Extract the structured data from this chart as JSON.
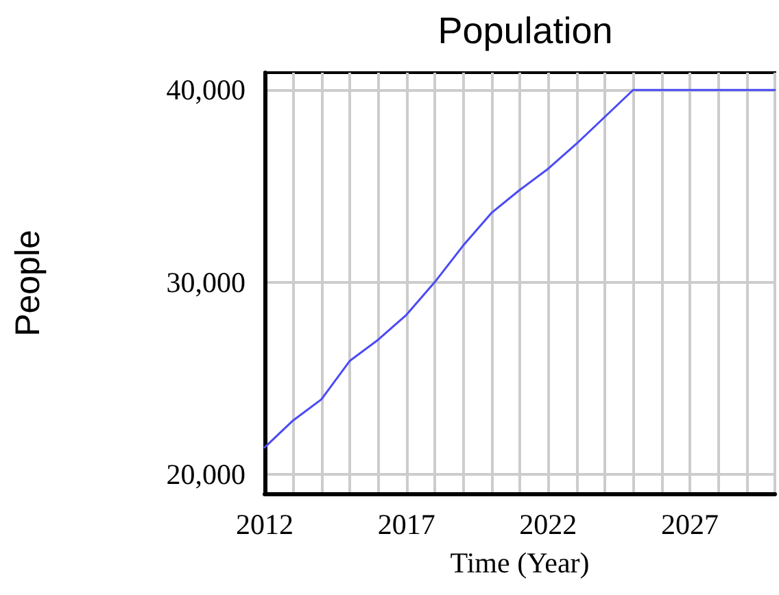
{
  "chart_data": {
    "type": "line",
    "title": "Population",
    "xlabel": "Time (Year)",
    "ylabel": "People",
    "x": [
      2012,
      2013,
      2014,
      2015,
      2016,
      2017,
      2018,
      2019,
      2020,
      2021,
      2022,
      2023,
      2024,
      2025,
      2026,
      2027,
      2028,
      2029,
      2030
    ],
    "series": [
      {
        "color": "#4a4af5",
        "values": [
          21400,
          22800,
          23900,
          25900,
          27000,
          28300,
          30000,
          31900,
          33600,
          34800,
          35900,
          37200,
          38600,
          40000,
          40000,
          40000,
          40000,
          40000,
          40000
        ]
      }
    ],
    "xlim": [
      2012,
      2030
    ],
    "ylim": [
      19000,
      40900
    ],
    "xticks": [
      2012,
      {
        "value": 2013,
        "label": null
      },
      {
        "value": 2014,
        "label": null
      },
      {
        "value": 2015,
        "label": null
      },
      {
        "value": 2016,
        "label": null
      },
      2017,
      {
        "value": 2018,
        "label": null
      },
      {
        "value": 2019,
        "label": null
      },
      {
        "value": 2020,
        "label": null
      },
      {
        "value": 2021,
        "label": null
      },
      2022,
      {
        "value": 2023,
        "label": null
      },
      {
        "value": 2024,
        "label": null
      },
      {
        "value": 2025,
        "label": null
      },
      {
        "value": 2026,
        "label": null
      },
      2027,
      {
        "value": 2028,
        "label": null
      },
      {
        "value": 2029,
        "label": null
      },
      {
        "value": 2030,
        "label": null
      }
    ],
    "yticks": [
      {
        "value": 20000,
        "label": "20,000"
      },
      {
        "value": 30000,
        "label": "30,000"
      },
      {
        "value": 40000,
        "label": "40,000"
      }
    ],
    "grid": true,
    "marker": "none",
    "line_style": "solid"
  }
}
